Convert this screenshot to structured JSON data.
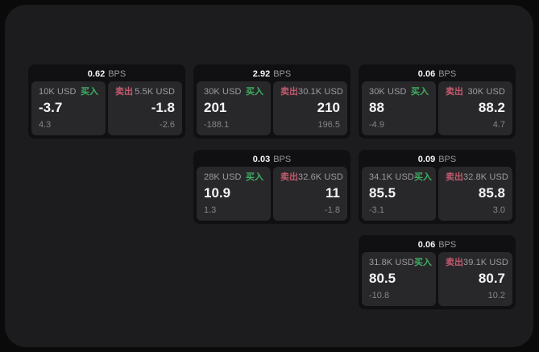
{
  "labels": {
    "bps_suffix": "BPS",
    "buy": "买入",
    "sell": "卖出"
  },
  "colors": {
    "buy_accent": "#3fae62",
    "sell_accent": "#c05a6e",
    "surface_bg": "#1c1c1e",
    "card_bg": "#101012",
    "tile_bg": "#28282a"
  },
  "cards": [
    {
      "row": 1,
      "col": 1,
      "bps": "0.62",
      "buy": {
        "amount": "10K USD",
        "price": "-3.7",
        "sub": "4.3"
      },
      "sell": {
        "amount": "5.5K USD",
        "price": "-1.8",
        "sub": "-2.6"
      }
    },
    {
      "row": 1,
      "col": 2,
      "bps": "2.92",
      "buy": {
        "amount": "30K USD",
        "price": "201",
        "sub": "-188.1"
      },
      "sell": {
        "amount": "30.1K USD",
        "price": "210",
        "sub": "196.5"
      }
    },
    {
      "row": 1,
      "col": 3,
      "bps": "0.06",
      "buy": {
        "amount": "30K USD",
        "price": "88",
        "sub": "-4.9"
      },
      "sell": {
        "amount": "30K USD",
        "price": "88.2",
        "sub": "4.7"
      }
    },
    {
      "row": 2,
      "col": 2,
      "bps": "0.03",
      "buy": {
        "amount": "28K USD",
        "price": "10.9",
        "sub": "1.3"
      },
      "sell": {
        "amount": "32.6K USD",
        "price": "11",
        "sub": "-1.8"
      }
    },
    {
      "row": 2,
      "col": 3,
      "bps": "0.09",
      "buy": {
        "amount": "34.1K USD",
        "price": "85.5",
        "sub": "-3.1"
      },
      "sell": {
        "amount": "32.8K USD",
        "price": "85.8",
        "sub": "3.0"
      }
    },
    {
      "row": 3,
      "col": 3,
      "bps": "0.06",
      "buy": {
        "amount": "31.8K USD",
        "price": "80.5",
        "sub": "-10.8"
      },
      "sell": {
        "amount": "39.1K USD",
        "price": "80.7",
        "sub": "10.2"
      }
    }
  ]
}
